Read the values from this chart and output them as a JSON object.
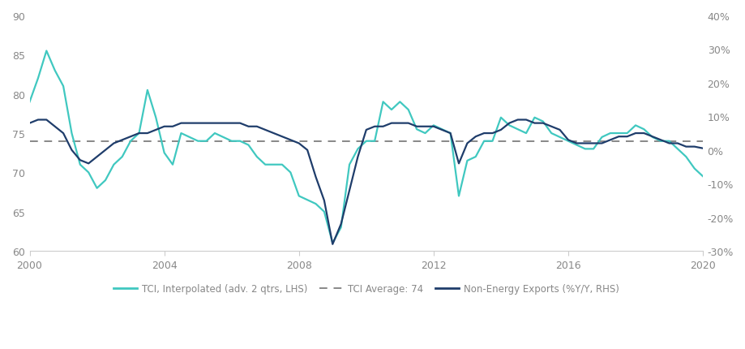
{
  "tci_years": [
    2000.0,
    2000.25,
    2000.5,
    2000.75,
    2001.0,
    2001.25,
    2001.5,
    2001.75,
    2002.0,
    2002.25,
    2002.5,
    2002.75,
    2003.0,
    2003.25,
    2003.5,
    2003.75,
    2004.0,
    2004.25,
    2004.5,
    2004.75,
    2005.0,
    2005.25,
    2005.5,
    2005.75,
    2006.0,
    2006.25,
    2006.5,
    2006.75,
    2007.0,
    2007.25,
    2007.5,
    2007.75,
    2008.0,
    2008.25,
    2008.5,
    2008.75,
    2009.0,
    2009.25,
    2009.5,
    2009.75,
    2010.0,
    2010.25,
    2010.5,
    2010.75,
    2011.0,
    2011.25,
    2011.5,
    2011.75,
    2012.0,
    2012.25,
    2012.5,
    2012.75,
    2013.0,
    2013.25,
    2013.5,
    2013.75,
    2014.0,
    2014.25,
    2014.5,
    2014.75,
    2015.0,
    2015.25,
    2015.5,
    2015.75,
    2016.0,
    2016.25,
    2016.5,
    2016.75,
    2017.0,
    2017.25,
    2017.5,
    2017.75,
    2018.0,
    2018.25,
    2018.5,
    2018.75,
    2019.0,
    2019.25,
    2019.5,
    2019.75,
    2020.0
  ],
  "tci_values": [
    79,
    82,
    85.5,
    83,
    81,
    75,
    71,
    70,
    68,
    69,
    71,
    72,
    74,
    75,
    80.5,
    77,
    72.5,
    71,
    75,
    74.5,
    74,
    74,
    75,
    74.5,
    74,
    74,
    73.5,
    72,
    71,
    71,
    71,
    70,
    67,
    66.5,
    66,
    65,
    61,
    63,
    71,
    73,
    74,
    74,
    79,
    78,
    79,
    78,
    75.5,
    75,
    76,
    75.5,
    75,
    67,
    71.5,
    72,
    74,
    74,
    77,
    76,
    75.5,
    75,
    77,
    76.5,
    75,
    74.5,
    74,
    73.5,
    73,
    73,
    74.5,
    75,
    75,
    75,
    76,
    75.5,
    74.5,
    74,
    74,
    73,
    72,
    70.5,
    69.5
  ],
  "exports_years": [
    2000.0,
    2000.25,
    2000.5,
    2000.75,
    2001.0,
    2001.25,
    2001.5,
    2001.75,
    2002.0,
    2002.25,
    2002.5,
    2002.75,
    2003.0,
    2003.25,
    2003.5,
    2003.75,
    2004.0,
    2004.25,
    2004.5,
    2004.75,
    2005.0,
    2005.25,
    2005.5,
    2005.75,
    2006.0,
    2006.25,
    2006.5,
    2006.75,
    2007.0,
    2007.25,
    2007.5,
    2007.75,
    2008.0,
    2008.25,
    2008.5,
    2008.75,
    2009.0,
    2009.25,
    2009.5,
    2009.75,
    2010.0,
    2010.25,
    2010.5,
    2010.75,
    2011.0,
    2011.25,
    2011.5,
    2011.75,
    2012.0,
    2012.25,
    2012.5,
    2012.75,
    2013.0,
    2013.25,
    2013.5,
    2013.75,
    2014.0,
    2014.25,
    2014.5,
    2014.75,
    2015.0,
    2015.25,
    2015.5,
    2015.75,
    2016.0,
    2016.25,
    2016.5,
    2016.75,
    2017.0,
    2017.25,
    2017.5,
    2017.75,
    2018.0,
    2018.25,
    2018.5,
    2018.75,
    2019.0,
    2019.25,
    2019.5,
    2019.75,
    2020.0
  ],
  "exports_values": [
    8,
    9,
    9,
    7,
    5,
    0,
    -3,
    -4,
    -2,
    0,
    2,
    3,
    4,
    5,
    5,
    6,
    7,
    7,
    8,
    8,
    8,
    8,
    8,
    8,
    8,
    8,
    7,
    7,
    6,
    5,
    4,
    3,
    2,
    0,
    -8,
    -15,
    -28,
    -22,
    -12,
    -2,
    6,
    7,
    7,
    8,
    8,
    8,
    7,
    7,
    7,
    6,
    5,
    -4,
    2,
    4,
    5,
    5,
    6,
    8,
    9,
    9,
    8,
    8,
    7,
    6,
    3,
    2,
    2,
    2,
    2,
    3,
    4,
    4,
    5,
    5,
    4,
    3,
    2,
    2,
    1,
    1,
    0.5
  ],
  "tci_average": 74,
  "ylim_left": [
    60,
    90
  ],
  "ylim_right": [
    -30,
    40
  ],
  "yticks_left": [
    60,
    65,
    70,
    75,
    80,
    85,
    90
  ],
  "yticks_right_pct": [
    -30,
    -20,
    -10,
    0,
    10,
    20,
    30,
    40
  ],
  "xlim": [
    2000,
    2020
  ],
  "xticks": [
    2000,
    2004,
    2008,
    2012,
    2016,
    2020
  ],
  "tci_color": "#40c8c0",
  "exports_color": "#1f3d6b",
  "avg_color": "#888888",
  "background_color": "#ffffff",
  "legend_tci_label": "TCI, Interpolated (adv. 2 qtrs, LHS)",
  "legend_avg_label": "TCI Average: 74",
  "legend_exports_label": "Non-Energy Exports (%Y/Y, RHS)",
  "tick_color": "#aaaaaa",
  "label_color": "#888888"
}
